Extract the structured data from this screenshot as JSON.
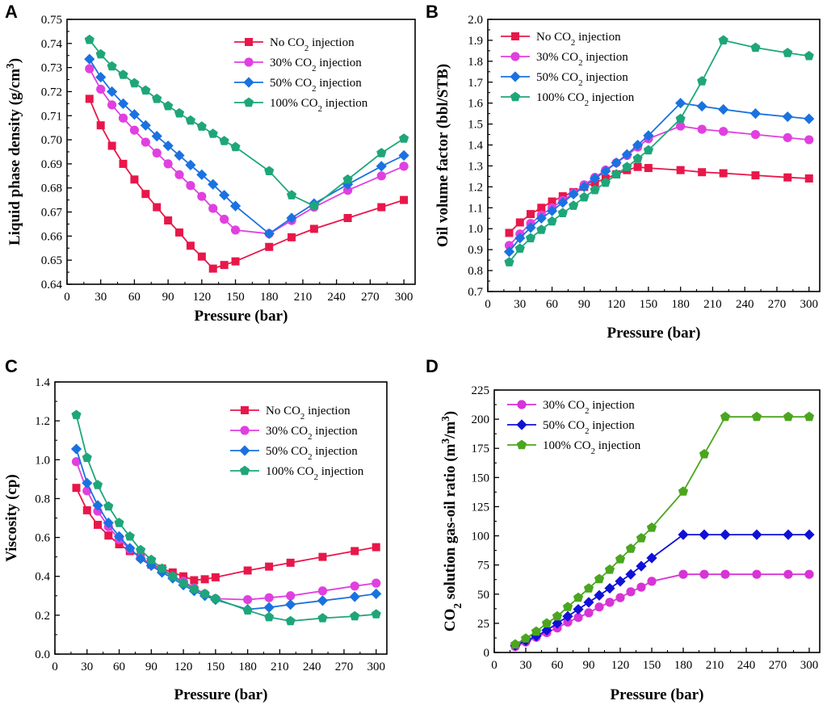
{
  "chart_data": [
    {
      "type": "line",
      "panel": "A",
      "xlabel": "Pressure (bar)",
      "ylabel": "Liquid phase density (g/cm3)",
      "ylabel_parts": [
        "Liquid phase density (g/cm",
        "3",
        ")"
      ],
      "xlim": [
        0,
        310
      ],
      "ylim": [
        0.64,
        0.75
      ],
      "xticks": [
        0,
        30,
        60,
        90,
        120,
        150,
        180,
        210,
        240,
        270,
        300
      ],
      "xtick_labels": [
        "0",
        "30",
        "60",
        "90",
        "120",
        "150",
        "180",
        "210",
        "240",
        "270",
        "300"
      ],
      "yticks": [
        0.64,
        0.65,
        0.66,
        0.67,
        0.68,
        0.69,
        0.7,
        0.71,
        0.72,
        0.73,
        0.74,
        0.75
      ],
      "ytick_labels": [
        "0.64",
        "0.65",
        "0.66",
        "0.67",
        "0.68",
        "0.69",
        "0.70",
        "0.71",
        "0.72",
        "0.73",
        "0.74",
        "0.75"
      ],
      "series": [
        {
          "name": "No CO2 injection",
          "label_parts": [
            "No CO",
            "2",
            " injection"
          ],
          "color": "#e8174a",
          "marker": "square",
          "x": [
            20,
            30,
            40,
            50,
            60,
            70,
            80,
            90,
            100,
            110,
            120,
            130,
            140,
            150,
            180,
            200,
            220,
            250,
            280,
            300
          ],
          "y": [
            0.717,
            0.706,
            0.6975,
            0.69,
            0.6835,
            0.6775,
            0.672,
            0.6665,
            0.6615,
            0.656,
            0.6515,
            0.6465,
            0.648,
            0.6495,
            0.6555,
            0.6595,
            0.663,
            0.6675,
            0.672,
            0.675
          ]
        },
        {
          "name": "30% CO2 injection",
          "label_parts": [
            "30% CO",
            "2",
            " injection"
          ],
          "color": "#e040e0",
          "marker": "circle",
          "x": [
            20,
            30,
            40,
            50,
            60,
            70,
            80,
            90,
            100,
            110,
            120,
            130,
            140,
            150,
            180,
            200,
            220,
            250,
            280,
            300
          ],
          "y": [
            0.7295,
            0.721,
            0.7145,
            0.709,
            0.704,
            0.699,
            0.6945,
            0.69,
            0.6855,
            0.681,
            0.6765,
            0.6715,
            0.667,
            0.6625,
            0.661,
            0.6665,
            0.672,
            0.679,
            0.685,
            0.689
          ]
        },
        {
          "name": "50% CO2 injection",
          "label_parts": [
            "50% CO",
            "2",
            " injection"
          ],
          "color": "#1a72e0",
          "marker": "diamond",
          "x": [
            20,
            30,
            40,
            50,
            60,
            70,
            80,
            90,
            100,
            110,
            120,
            130,
            140,
            150,
            180,
            200,
            220,
            250,
            280,
            300
          ],
          "y": [
            0.7335,
            0.726,
            0.72,
            0.715,
            0.7105,
            0.706,
            0.7015,
            0.6975,
            0.6935,
            0.6895,
            0.6855,
            0.6815,
            0.677,
            0.6725,
            0.661,
            0.6675,
            0.6735,
            0.6815,
            0.689,
            0.6935
          ]
        },
        {
          "name": "100% CO2 injection",
          "label_parts": [
            "100% CO",
            "2",
            " injection"
          ],
          "color": "#1ea67a",
          "marker": "pentagon",
          "x": [
            20,
            30,
            40,
            50,
            60,
            70,
            80,
            90,
            100,
            110,
            120,
            130,
            140,
            150,
            180,
            200,
            220,
            250,
            280,
            300
          ],
          "y": [
            0.7415,
            0.7355,
            0.7305,
            0.727,
            0.7235,
            0.7205,
            0.717,
            0.714,
            0.711,
            0.708,
            0.7055,
            0.7025,
            0.6995,
            0.697,
            0.687,
            0.677,
            0.6725,
            0.6835,
            0.6945,
            0.7005
          ]
        }
      ]
    },
    {
      "type": "line",
      "panel": "B",
      "xlabel": "Pressure (bar)",
      "ylabel": "Oil volume factor (bbl/STB)",
      "ylabel_parts": [
        "Oil volume factor (bbl/STB)"
      ],
      "xlim": [
        0,
        310
      ],
      "ylim": [
        0.7,
        2.0
      ],
      "xticks": [
        0,
        30,
        60,
        90,
        120,
        150,
        180,
        210,
        240,
        270,
        300
      ],
      "xtick_labels": [
        "0",
        "30",
        "60",
        "90",
        "120",
        "150",
        "180",
        "210",
        "240",
        "270",
        "300"
      ],
      "yticks": [
        0.7,
        0.8,
        0.9,
        1.0,
        1.1,
        1.2,
        1.3,
        1.4,
        1.5,
        1.6,
        1.7,
        1.8,
        1.9,
        2.0
      ],
      "ytick_labels": [
        "0.7",
        "0.8",
        "0.9",
        "1.0",
        "1.1",
        "1.2",
        "1.3",
        "1.4",
        "1.5",
        "1.6",
        "1.7",
        "1.8",
        "1.9",
        "2.0"
      ],
      "series": [
        {
          "name": "No CO2 injection",
          "label_parts": [
            "No CO",
            "2",
            " injection"
          ],
          "color": "#e8174a",
          "marker": "square",
          "x": [
            20,
            30,
            40,
            50,
            60,
            70,
            80,
            90,
            100,
            110,
            120,
            130,
            140,
            150,
            180,
            200,
            220,
            250,
            280,
            300
          ],
          "y": [
            0.98,
            1.03,
            1.07,
            1.1,
            1.13,
            1.155,
            1.175,
            1.2,
            1.22,
            1.24,
            1.26,
            1.28,
            1.295,
            1.29,
            1.28,
            1.27,
            1.265,
            1.255,
            1.245,
            1.24
          ]
        },
        {
          "name": "30% CO2 injection",
          "label_parts": [
            "30% CO",
            "2",
            " injection"
          ],
          "color": "#e040e0",
          "marker": "circle",
          "x": [
            20,
            30,
            40,
            50,
            60,
            70,
            80,
            90,
            100,
            110,
            120,
            130,
            140,
            150,
            180,
            200,
            220,
            250,
            280,
            300
          ],
          "y": [
            0.92,
            0.975,
            1.025,
            1.065,
            1.1,
            1.135,
            1.17,
            1.21,
            1.245,
            1.28,
            1.315,
            1.35,
            1.39,
            1.43,
            1.49,
            1.475,
            1.465,
            1.45,
            1.435,
            1.425
          ]
        },
        {
          "name": "50% CO2 injection",
          "label_parts": [
            "50% CO",
            "2",
            " injection"
          ],
          "color": "#1a72e0",
          "marker": "diamond",
          "x": [
            20,
            30,
            40,
            50,
            60,
            70,
            80,
            90,
            100,
            110,
            120,
            130,
            140,
            150,
            180,
            200,
            220,
            250,
            280,
            300
          ],
          "y": [
            0.89,
            0.955,
            1.005,
            1.05,
            1.085,
            1.125,
            1.165,
            1.2,
            1.24,
            1.275,
            1.315,
            1.355,
            1.4,
            1.445,
            1.6,
            1.585,
            1.57,
            1.55,
            1.535,
            1.525
          ]
        },
        {
          "name": "100% CO2 injection",
          "label_parts": [
            "100% CO",
            "2",
            " injection"
          ],
          "color": "#1ea67a",
          "marker": "pentagon",
          "x": [
            20,
            30,
            40,
            50,
            60,
            70,
            80,
            90,
            100,
            110,
            120,
            130,
            140,
            150,
            180,
            200,
            220,
            250,
            280,
            300
          ],
          "y": [
            0.84,
            0.905,
            0.955,
            0.995,
            1.035,
            1.075,
            1.11,
            1.15,
            1.185,
            1.22,
            1.26,
            1.295,
            1.335,
            1.375,
            1.525,
            1.705,
            1.9,
            1.865,
            1.84,
            1.825
          ]
        }
      ]
    },
    {
      "type": "line",
      "panel": "C",
      "xlabel": "Pressure (bar)",
      "ylabel": "Viscosity (cp)",
      "ylabel_parts": [
        "Viscosity (cp)"
      ],
      "xlim": [
        0,
        310
      ],
      "ylim": [
        0.0,
        1.4
      ],
      "xticks": [
        0,
        30,
        60,
        90,
        120,
        150,
        180,
        210,
        240,
        270,
        300
      ],
      "xtick_labels": [
        "0",
        "30",
        "60",
        "90",
        "120",
        "150",
        "180",
        "210",
        "240",
        "270",
        "300"
      ],
      "yticks": [
        0.0,
        0.2,
        0.4,
        0.6,
        0.8,
        1.0,
        1.2,
        1.4
      ],
      "ytick_labels": [
        "0.0",
        "0.2",
        "0.4",
        "0.6",
        "0.8",
        "1.0",
        "1.2",
        "1.4"
      ],
      "series": [
        {
          "name": "No CO2 injection",
          "label_parts": [
            "No CO",
            "2",
            " injection"
          ],
          "color": "#e8174a",
          "marker": "square",
          "x": [
            20,
            30,
            40,
            50,
            60,
            70,
            80,
            90,
            100,
            110,
            120,
            130,
            140,
            150,
            180,
            200,
            220,
            250,
            280,
            300
          ],
          "y": [
            0.855,
            0.74,
            0.665,
            0.61,
            0.565,
            0.53,
            0.5,
            0.46,
            0.44,
            0.42,
            0.4,
            0.38,
            0.385,
            0.395,
            0.43,
            0.45,
            0.47,
            0.5,
            0.53,
            0.55
          ]
        },
        {
          "name": "30% CO2 injection",
          "label_parts": [
            "30% CO",
            "2",
            " injection"
          ],
          "color": "#e040e0",
          "marker": "circle",
          "x": [
            20,
            30,
            40,
            50,
            60,
            70,
            80,
            90,
            100,
            110,
            120,
            130,
            140,
            150,
            180,
            200,
            220,
            250,
            280,
            300
          ],
          "y": [
            0.99,
            0.84,
            0.735,
            0.655,
            0.59,
            0.54,
            0.495,
            0.46,
            0.43,
            0.4,
            0.375,
            0.34,
            0.31,
            0.285,
            0.28,
            0.29,
            0.3,
            0.325,
            0.35,
            0.365
          ]
        },
        {
          "name": "50% CO2 injection",
          "label_parts": [
            "50% CO",
            "2",
            " injection"
          ],
          "color": "#1a72e0",
          "marker": "diamond",
          "x": [
            20,
            30,
            40,
            50,
            60,
            70,
            80,
            90,
            100,
            110,
            120,
            130,
            140,
            150,
            180,
            200,
            220,
            250,
            280,
            300
          ],
          "y": [
            1.055,
            0.88,
            0.765,
            0.675,
            0.605,
            0.545,
            0.49,
            0.455,
            0.42,
            0.39,
            0.355,
            0.325,
            0.3,
            0.28,
            0.23,
            0.24,
            0.255,
            0.275,
            0.295,
            0.31
          ]
        },
        {
          "name": "100% CO2 injection",
          "label_parts": [
            "100% CO",
            "2",
            " injection"
          ],
          "color": "#1ea67a",
          "marker": "pentagon",
          "x": [
            20,
            30,
            40,
            50,
            60,
            70,
            80,
            90,
            100,
            110,
            120,
            130,
            140,
            150,
            180,
            200,
            220,
            250,
            280,
            300
          ],
          "y": [
            1.23,
            1.01,
            0.87,
            0.76,
            0.675,
            0.605,
            0.535,
            0.485,
            0.44,
            0.4,
            0.365,
            0.335,
            0.31,
            0.285,
            0.225,
            0.19,
            0.17,
            0.185,
            0.195,
            0.205
          ]
        }
      ]
    },
    {
      "type": "line",
      "panel": "D",
      "xlabel": "Pressure (bar)",
      "ylabel": "CO2 solution gas-oil ratio (m3/m3)",
      "ylabel_parts": [
        "CO",
        "2",
        " solution gas-oil ratio (m",
        "3",
        "/m",
        "3",
        ")"
      ],
      "xlim": [
        0,
        310
      ],
      "ylim": [
        0,
        225
      ],
      "xticks": [
        0,
        30,
        60,
        90,
        120,
        150,
        180,
        210,
        240,
        270,
        300
      ],
      "xtick_labels": [
        "0",
        "30",
        "60",
        "90",
        "120",
        "150",
        "180",
        "210",
        "240",
        "270",
        "300"
      ],
      "yticks": [
        0,
        25,
        50,
        75,
        100,
        125,
        150,
        175,
        200,
        225
      ],
      "ytick_labels": [
        "0",
        "25",
        "50",
        "75",
        "100",
        "125",
        "150",
        "175",
        "200",
        "225"
      ],
      "series": [
        {
          "name": "30% CO2 injection",
          "label_parts": [
            "30% CO",
            "2",
            " injection"
          ],
          "color": "#d733d7",
          "marker": "circle",
          "x": [
            20,
            30,
            40,
            50,
            60,
            70,
            80,
            90,
            100,
            110,
            120,
            130,
            140,
            150,
            180,
            200,
            220,
            250,
            280,
            300
          ],
          "y": [
            5,
            9,
            13,
            17,
            21,
            26,
            30,
            34,
            39,
            43,
            47,
            52,
            56,
            61,
            67,
            67,
            67,
            67,
            67,
            67
          ]
        },
        {
          "name": "50% CO2 injection",
          "label_parts": [
            "50% CO",
            "2",
            " injection"
          ],
          "color": "#1010d8",
          "marker": "diamond",
          "x": [
            20,
            30,
            40,
            50,
            60,
            70,
            80,
            90,
            100,
            110,
            120,
            130,
            140,
            150,
            180,
            200,
            220,
            250,
            280,
            300
          ],
          "y": [
            6,
            10,
            14,
            19,
            25,
            31,
            37,
            43,
            49,
            55,
            61,
            67,
            74,
            81,
            101,
            101,
            101,
            101,
            101,
            101
          ]
        },
        {
          "name": "100% CO2 injection",
          "label_parts": [
            "100% CO",
            "2",
            " injection"
          ],
          "color": "#4ba61e",
          "marker": "pentagon",
          "x": [
            20,
            30,
            40,
            50,
            60,
            70,
            80,
            90,
            100,
            110,
            120,
            130,
            140,
            150,
            180,
            200,
            220,
            250,
            280,
            300
          ],
          "y": [
            7,
            12,
            18,
            25,
            31,
            39,
            47,
            55,
            63,
            71,
            80,
            89,
            98,
            107,
            138,
            170,
            202,
            202,
            202,
            202
          ]
        }
      ]
    }
  ]
}
